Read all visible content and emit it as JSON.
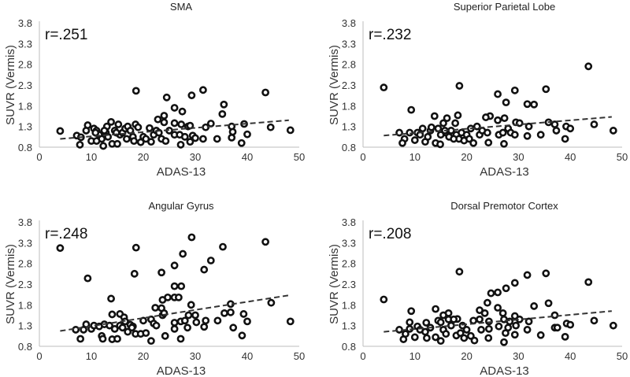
{
  "chart_data": [
    {
      "type": "scatter",
      "title": "SMA",
      "annotation": "r=.251",
      "xlabel": "ADAS-13",
      "ylabel": "SUVR (Vermis)",
      "xlim": [
        0,
        50
      ],
      "ylim": [
        0.8,
        3.8
      ],
      "xticks": [
        "0",
        "10",
        "20",
        "30",
        "40",
        "50"
      ],
      "yticks": [
        "0.8",
        "1.3",
        "1.8",
        "2.3",
        "2.8",
        "3.3",
        "3.8"
      ],
      "trendline": {
        "x": [
          4,
          48
        ],
        "y": [
          1.0,
          1.45
        ]
      },
      "points": [
        [
          18.6,
          2.16
        ],
        [
          24.5,
          2.0
        ],
        [
          29.3,
          2.05
        ],
        [
          31.5,
          2.18
        ],
        [
          43.5,
          2.12
        ],
        [
          26,
          1.75
        ],
        [
          27.5,
          1.66
        ],
        [
          35.5,
          1.83
        ],
        [
          35.2,
          1.6
        ],
        [
          24,
          1.56
        ],
        [
          22.8,
          1.47
        ],
        [
          24,
          1.4
        ],
        [
          26,
          1.38
        ],
        [
          27.3,
          1.35
        ],
        [
          28.6,
          1.3
        ],
        [
          29,
          1.32
        ],
        [
          33,
          1.37
        ],
        [
          32,
          1.28
        ],
        [
          37,
          1.3
        ],
        [
          39.4,
          1.36
        ],
        [
          44.5,
          1.28
        ],
        [
          48.3,
          1.21
        ],
        [
          4,
          1.19
        ],
        [
          7.2,
          1.08
        ],
        [
          8,
          1.04
        ],
        [
          7.8,
          0.86
        ],
        [
          9,
          1.2
        ],
        [
          9.3,
          1.33
        ],
        [
          10,
          0.95
        ],
        [
          10.5,
          1.25
        ],
        [
          11,
          1.2
        ],
        [
          11.5,
          1.1
        ],
        [
          12,
          1.0
        ],
        [
          12.3,
          0.83
        ],
        [
          12.8,
          1.15
        ],
        [
          13.2,
          1.05
        ],
        [
          13.8,
          1.41
        ],
        [
          14,
          0.88
        ],
        [
          14.5,
          1.2
        ],
        [
          15,
          0.88
        ],
        [
          15.2,
          1.35
        ],
        [
          15.5,
          1.1
        ],
        [
          16,
          1.15
        ],
        [
          16.5,
          1.25
        ],
        [
          17,
          1.3
        ],
        [
          17.5,
          1.2
        ],
        [
          18,
          1.05
        ],
        [
          18.2,
          0.95
        ],
        [
          18.5,
          1.35
        ],
        [
          19,
          1.28
        ],
        [
          19.5,
          0.92
        ],
        [
          20,
          1.05
        ],
        [
          20.5,
          1.0
        ],
        [
          21.2,
          1.26
        ],
        [
          21.5,
          0.93
        ],
        [
          22,
          1.1
        ],
        [
          22.5,
          1.2
        ],
        [
          23,
          1.15
        ],
        [
          23.5,
          1.0
        ],
        [
          24.3,
          0.95
        ],
        [
          25,
          1.2
        ],
        [
          26,
          1.1
        ],
        [
          27,
          1.1
        ],
        [
          27.2,
          0.86
        ],
        [
          28,
          1.05
        ],
        [
          29,
          0.93
        ],
        [
          29.5,
          1.08
        ],
        [
          30,
          1.02
        ],
        [
          31.5,
          1.0
        ],
        [
          34.2,
          1.0
        ],
        [
          37,
          1.03
        ],
        [
          38.9,
          0.9
        ],
        [
          40,
          1.11
        ],
        [
          37.2,
          1.17
        ],
        [
          13,
          1.3
        ],
        [
          11,
          0.95
        ],
        [
          16.8,
          1.0
        ],
        [
          14.8,
          1.15
        ],
        [
          12.5,
          1.2
        ],
        [
          10.8,
          1.15
        ]
      ]
    },
    {
      "type": "scatter",
      "title": "Superior Parietal Lobe",
      "annotation": "r=.232",
      "xlabel": "ADAS-13",
      "ylabel": "SUVR (Vermis)",
      "xlim": [
        0,
        50
      ],
      "ylim": [
        0.8,
        3.8
      ],
      "xticks": [
        "0",
        "10",
        "20",
        "30",
        "40",
        "50"
      ],
      "yticks": [
        "0.8",
        "1.3",
        "1.8",
        "2.3",
        "2.8",
        "3.3",
        "3.8"
      ],
      "trendline": {
        "x": [
          4,
          48
        ],
        "y": [
          1.08,
          1.53
        ]
      },
      "points": [
        [
          4,
          2.24
        ],
        [
          18.6,
          2.28
        ],
        [
          26,
          2.08
        ],
        [
          29.3,
          2.17
        ],
        [
          35.3,
          2.2
        ],
        [
          43.5,
          2.75
        ],
        [
          27.6,
          1.88
        ],
        [
          31.7,
          1.84
        ],
        [
          33,
          1.83
        ],
        [
          9.3,
          1.7
        ],
        [
          13.8,
          1.55
        ],
        [
          18.3,
          1.57
        ],
        [
          24.5,
          1.55
        ],
        [
          23.7,
          1.52
        ],
        [
          26,
          1.45
        ],
        [
          27.3,
          1.5
        ],
        [
          16.2,
          1.5
        ],
        [
          15.5,
          1.38
        ],
        [
          17.8,
          1.38
        ],
        [
          29.5,
          1.4
        ],
        [
          30.2,
          1.38
        ],
        [
          35.8,
          1.4
        ],
        [
          37,
          1.35
        ],
        [
          39.2,
          1.3
        ],
        [
          40,
          1.25
        ],
        [
          44.6,
          1.35
        ],
        [
          48.3,
          1.2
        ],
        [
          32,
          1.3
        ],
        [
          37.3,
          1.2
        ],
        [
          7,
          1.15
        ],
        [
          8,
          1.0
        ],
        [
          7.6,
          0.9
        ],
        [
          9,
          1.15
        ],
        [
          10,
          0.97
        ],
        [
          10.5,
          1.15
        ],
        [
          11.5,
          1.25
        ],
        [
          12,
          0.93
        ],
        [
          12.5,
          1.05
        ],
        [
          13,
          1.2
        ],
        [
          14,
          0.9
        ],
        [
          14.5,
          1.25
        ],
        [
          14.9,
          0.87
        ],
        [
          15,
          1.1
        ],
        [
          16,
          1.15
        ],
        [
          16.6,
          1.05
        ],
        [
          17,
          1.2
        ],
        [
          18,
          1.1
        ],
        [
          18.5,
          1.0
        ],
        [
          19,
          1.15
        ],
        [
          19.5,
          0.96
        ],
        [
          20,
          1.1
        ],
        [
          20.5,
          1.0
        ],
        [
          21.3,
          0.9
        ],
        [
          22,
          1.3
        ],
        [
          22.5,
          1.1
        ],
        [
          23,
          1.2
        ],
        [
          24,
          1.15
        ],
        [
          24.2,
          0.91
        ],
        [
          26.2,
          1.1
        ],
        [
          27.2,
          0.88
        ],
        [
          28,
          1.25
        ],
        [
          28.5,
          1.15
        ],
        [
          29.3,
          1.1
        ],
        [
          31.7,
          1.07
        ],
        [
          34.3,
          1.1
        ],
        [
          39,
          1.0
        ],
        [
          13.2,
          1.28
        ],
        [
          11,
          1.1
        ],
        [
          15.8,
          1.2
        ],
        [
          17.5,
          1.0
        ],
        [
          20.8,
          1.25
        ],
        [
          27,
          1.15
        ]
      ]
    },
    {
      "type": "scatter",
      "title": "Angular Gyrus",
      "annotation": "r=.248",
      "xlabel": "ADAS-13",
      "ylabel": "SUVR (Vermis)",
      "xlim": [
        0,
        50
      ],
      "ylim": [
        0.8,
        3.8
      ],
      "xticks": [
        "0",
        "10",
        "20",
        "30",
        "40",
        "50"
      ],
      "yticks": [
        "0.8",
        "1.3",
        "1.8",
        "2.3",
        "2.8",
        "3.3",
        "3.8"
      ],
      "trendline": {
        "x": [
          4,
          48
        ],
        "y": [
          1.17,
          2.03
        ]
      },
      "points": [
        [
          4,
          3.17
        ],
        [
          9.3,
          2.44
        ],
        [
          18.6,
          3.18
        ],
        [
          18.3,
          2.55
        ],
        [
          23.5,
          2.58
        ],
        [
          26,
          2.75
        ],
        [
          27.6,
          3.03
        ],
        [
          29.3,
          3.43
        ],
        [
          31.7,
          2.65
        ],
        [
          33,
          2.87
        ],
        [
          35.3,
          3.2
        ],
        [
          43.5,
          3.32
        ],
        [
          26,
          2.25
        ],
        [
          27.3,
          2.25
        ],
        [
          23.7,
          1.92
        ],
        [
          24.7,
          1.98
        ],
        [
          26,
          1.98
        ],
        [
          26.8,
          1.98
        ],
        [
          13.8,
          1.95
        ],
        [
          29.2,
          1.8
        ],
        [
          36.8,
          1.82
        ],
        [
          44.6,
          1.85
        ],
        [
          22.3,
          1.73
        ],
        [
          23.5,
          1.72
        ],
        [
          23.7,
          1.55
        ],
        [
          24,
          1.6
        ],
        [
          35.6,
          1.6
        ],
        [
          36.8,
          1.62
        ],
        [
          39.3,
          1.58
        ],
        [
          15.5,
          1.58
        ],
        [
          14,
          1.57
        ],
        [
          16.3,
          1.5
        ],
        [
          20,
          1.42
        ],
        [
          21.5,
          1.45
        ],
        [
          22,
          1.35
        ],
        [
          26,
          1.37
        ],
        [
          27.2,
          1.4
        ],
        [
          28,
          1.42
        ],
        [
          28.7,
          1.55
        ],
        [
          30,
          1.55
        ],
        [
          30.2,
          1.38
        ],
        [
          32,
          1.42
        ],
        [
          34.3,
          1.42
        ],
        [
          40,
          1.4
        ],
        [
          48.3,
          1.4
        ],
        [
          31.7,
          1.27
        ],
        [
          37.3,
          1.25
        ],
        [
          39,
          1.06
        ],
        [
          24.2,
          1.05
        ],
        [
          27.2,
          0.98
        ],
        [
          21.5,
          0.93
        ],
        [
          26,
          1.22
        ],
        [
          28.5,
          1.25
        ],
        [
          7,
          1.2
        ],
        [
          7.9,
          0.98
        ],
        [
          8.5,
          1.2
        ],
        [
          9,
          1.33
        ],
        [
          10,
          1.22
        ],
        [
          10.5,
          1.3
        ],
        [
          11.5,
          1.28
        ],
        [
          12,
          1.05
        ],
        [
          12.2,
          0.98
        ],
        [
          12.5,
          1.33
        ],
        [
          13.5,
          1.3
        ],
        [
          14,
          0.97
        ],
        [
          14.5,
          1.22
        ],
        [
          15,
          0.98
        ],
        [
          15.5,
          1.3
        ],
        [
          16,
          1.25
        ],
        [
          16.5,
          1.4
        ],
        [
          17,
          1.15
        ],
        [
          17.5,
          1.32
        ],
        [
          18,
          1.28
        ],
        [
          18.5,
          1.1
        ],
        [
          19.5,
          1.1
        ],
        [
          20.5,
          1.12
        ],
        [
          22.5,
          1.3
        ],
        [
          17.8,
          1.25
        ]
      ]
    },
    {
      "type": "scatter",
      "title": "Dorsal Premotor Cortex",
      "annotation": "r=.208",
      "xlabel": "ADAS-13",
      "ylabel": "SUVR (Vermis)",
      "xlim": [
        0,
        50
      ],
      "ylim": [
        0.8,
        3.8
      ],
      "xticks": [
        "0",
        "10",
        "20",
        "30",
        "40",
        "50"
      ],
      "yticks": [
        "0.8",
        "1.3",
        "1.8",
        "2.3",
        "2.8",
        "3.3",
        "3.8"
      ],
      "trendline": {
        "x": [
          4,
          48
        ],
        "y": [
          1.15,
          1.65
        ]
      },
      "points": [
        [
          4,
          1.93
        ],
        [
          9.3,
          1.65
        ],
        [
          18.6,
          2.6
        ],
        [
          24.7,
          2.08
        ],
        [
          26,
          2.1
        ],
        [
          27.6,
          2.2
        ],
        [
          29.3,
          2.33
        ],
        [
          31.7,
          2.52
        ],
        [
          35.3,
          2.56
        ],
        [
          43.5,
          2.35
        ],
        [
          24,
          1.85
        ],
        [
          33,
          1.77
        ],
        [
          35.8,
          1.84
        ],
        [
          14,
          1.7
        ],
        [
          22.5,
          1.67
        ],
        [
          23.5,
          1.6
        ],
        [
          26,
          1.73
        ],
        [
          27,
          1.6
        ],
        [
          16.5,
          1.6
        ],
        [
          15.5,
          1.55
        ],
        [
          29.3,
          1.53
        ],
        [
          37,
          1.55
        ],
        [
          18.2,
          1.46
        ],
        [
          21.3,
          1.42
        ],
        [
          22.5,
          1.45
        ],
        [
          24.3,
          1.4
        ],
        [
          27.2,
          1.45
        ],
        [
          28.3,
          1.4
        ],
        [
          30.2,
          1.45
        ],
        [
          32,
          1.4
        ],
        [
          44.6,
          1.42
        ],
        [
          9,
          1.38
        ],
        [
          12.2,
          1.37
        ],
        [
          14.5,
          1.42
        ],
        [
          15,
          1.38
        ],
        [
          16.5,
          1.45
        ],
        [
          17.5,
          1.45
        ],
        [
          26.2,
          1.28
        ],
        [
          28,
          1.25
        ],
        [
          29.5,
          1.3
        ],
        [
          31.7,
          1.2
        ],
        [
          37,
          1.25
        ],
        [
          37.5,
          1.25
        ],
        [
          39.3,
          1.35
        ],
        [
          40,
          1.32
        ],
        [
          48.3,
          1.3
        ],
        [
          24.3,
          1.22
        ],
        [
          7,
          1.2
        ],
        [
          7.8,
          0.97
        ],
        [
          8.2,
          1.1
        ],
        [
          9,
          1.22
        ],
        [
          10,
          1.02
        ],
        [
          10.5,
          1.28
        ],
        [
          11,
          1.2
        ],
        [
          12,
          1.15
        ],
        [
          12.3,
          1.0
        ],
        [
          13,
          1.25
        ],
        [
          14,
          1.02
        ],
        [
          15,
          0.93
        ],
        [
          15.5,
          1.2
        ],
        [
          16,
          1.1
        ],
        [
          17,
          1.3
        ],
        [
          18,
          1.06
        ],
        [
          18.8,
          1.12
        ],
        [
          19.5,
          1.0
        ],
        [
          20,
          1.2
        ],
        [
          20.8,
          1.05
        ],
        [
          21.5,
          0.94
        ],
        [
          22.8,
          1.2
        ],
        [
          24.2,
          1.0
        ],
        [
          27.2,
          0.9
        ],
        [
          27.5,
          1.12
        ],
        [
          29.3,
          1.08
        ],
        [
          34.3,
          1.07
        ],
        [
          39,
          1.03
        ],
        [
          19.2,
          1.3
        ]
      ]
    }
  ]
}
